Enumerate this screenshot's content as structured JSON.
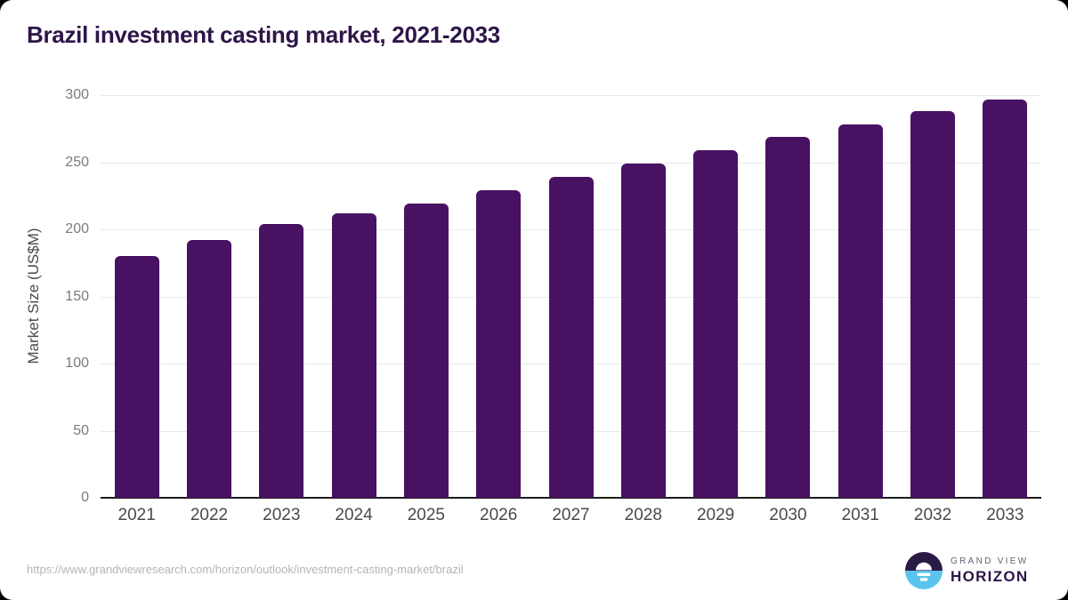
{
  "page": {
    "title": "Brazil investment casting market, 2021-2033"
  },
  "chart_data": {
    "type": "bar",
    "title": "Brazil investment casting market, 2021-2033",
    "categories": [
      "2021",
      "2022",
      "2023",
      "2024",
      "2025",
      "2026",
      "2027",
      "2028",
      "2029",
      "2030",
      "2031",
      "2032",
      "2033"
    ],
    "values": [
      180,
      192,
      204,
      212,
      219,
      229,
      239,
      249,
      259,
      269,
      278,
      288,
      297
    ],
    "xlabel": "",
    "ylabel": "Market Size (US$M)",
    "ylim": [
      0,
      300
    ],
    "ytick_step": 50,
    "yticks": [
      0,
      50,
      100,
      150,
      200,
      250,
      300
    ],
    "grid": "horizontal",
    "legend": "none",
    "bar_color": "#481161"
  },
  "footer": {
    "source_url": "https://www.grandviewresearch.com/horizon/outlook/investment-casting-market/brazil",
    "brand_top": "GRAND VIEW",
    "brand_bottom": "HORIZON"
  },
  "colors": {
    "title": "#2e1548",
    "bar": "#481161",
    "axis_label": "#4a4a4a",
    "tick_label": "#7b7b7b",
    "gridline": "#e9e9e9",
    "baseline": "#1c1c1c",
    "url": "#b5b5b5",
    "logo_dark": "#2a1b45",
    "logo_blue": "#5bc4ee"
  }
}
